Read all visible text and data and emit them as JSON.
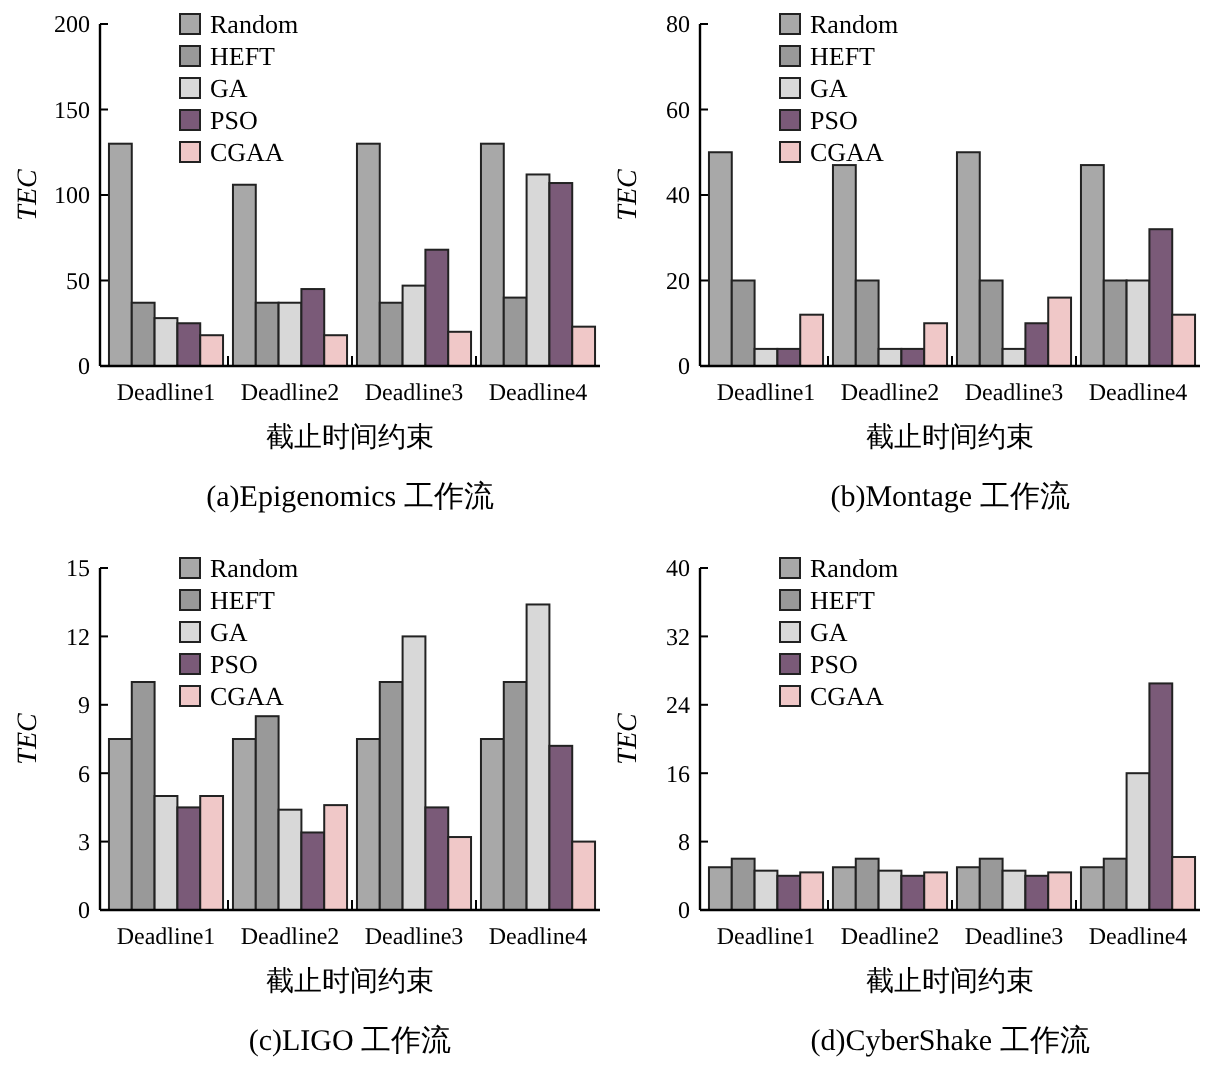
{
  "chart_data": [
    {
      "type": "bar",
      "title": "(a)Epigenomics 工作流",
      "xlabel": "截止时间约束",
      "ylabel": "TEC",
      "categories": [
        "Deadline1",
        "Deadline2",
        "Deadline3",
        "Deadline4"
      ],
      "ylim": [
        0,
        200
      ],
      "yticks": [
        0,
        50,
        100,
        150,
        200
      ],
      "legend": "top left",
      "series": [
        {
          "name": "Random",
          "color": "#a8a8a8",
          "values": [
            130,
            106,
            130,
            130
          ]
        },
        {
          "name": "HEFT",
          "color": "#999999",
          "values": [
            37,
            37,
            37,
            40
          ]
        },
        {
          "name": "GA",
          "color": "#d8d8d8",
          "values": [
            28,
            37,
            47,
            112
          ]
        },
        {
          "name": "PSO",
          "color": "#7a5a78",
          "values": [
            25,
            45,
            68,
            107
          ]
        },
        {
          "name": "CGAA",
          "color": "#f0c8c8",
          "values": [
            18,
            18,
            20,
            23
          ]
        }
      ]
    },
    {
      "type": "bar",
      "title": "(b)Montage 工作流",
      "xlabel": "截止时间约束",
      "ylabel": "TEC",
      "categories": [
        "Deadline1",
        "Deadline2",
        "Deadline3",
        "Deadline4"
      ],
      "ylim": [
        0,
        80
      ],
      "yticks": [
        0,
        20,
        40,
        60,
        80
      ],
      "legend": "top left",
      "series": [
        {
          "name": "Random",
          "color": "#a8a8a8",
          "values": [
            50,
            47,
            50,
            47
          ]
        },
        {
          "name": "HEFT",
          "color": "#999999",
          "values": [
            20,
            20,
            20,
            20
          ]
        },
        {
          "name": "GA",
          "color": "#d8d8d8",
          "values": [
            4,
            4,
            4,
            20
          ]
        },
        {
          "name": "PSO",
          "color": "#7a5a78",
          "values": [
            4,
            4,
            10,
            32
          ]
        },
        {
          "name": "CGAA",
          "color": "#f0c8c8",
          "values": [
            12,
            10,
            16,
            12
          ]
        }
      ]
    },
    {
      "type": "bar",
      "title": "(c)LIGO 工作流",
      "xlabel": "截止时间约束",
      "ylabel": "TEC",
      "categories": [
        "Deadline1",
        "Deadline2",
        "Deadline3",
        "Deadline4"
      ],
      "ylim": [
        0,
        15
      ],
      "yticks": [
        0,
        3,
        6,
        9,
        12,
        15
      ],
      "legend": "top left",
      "series": [
        {
          "name": "Random",
          "color": "#a8a8a8",
          "values": [
            7.5,
            7.5,
            7.5,
            7.5
          ]
        },
        {
          "name": "HEFT",
          "color": "#999999",
          "values": [
            10,
            8.5,
            10,
            10
          ]
        },
        {
          "name": "GA",
          "color": "#d8d8d8",
          "values": [
            5,
            4.4,
            12,
            13.4
          ]
        },
        {
          "name": "PSO",
          "color": "#7a5a78",
          "values": [
            4.5,
            3.4,
            4.5,
            7.2
          ]
        },
        {
          "name": "CGAA",
          "color": "#f0c8c8",
          "values": [
            5,
            4.6,
            3.2,
            3
          ]
        }
      ]
    },
    {
      "type": "bar",
      "title": "(d)CyberShake 工作流",
      "xlabel": "截止时间约束",
      "ylabel": "TEC",
      "categories": [
        "Deadline1",
        "Deadline2",
        "Deadline3",
        "Deadline4"
      ],
      "ylim": [
        0,
        40
      ],
      "yticks": [
        0,
        8,
        16,
        24,
        32,
        40
      ],
      "legend": "top left",
      "series": [
        {
          "name": "Random",
          "color": "#a8a8a8",
          "values": [
            5,
            5,
            5,
            5
          ]
        },
        {
          "name": "HEFT",
          "color": "#999999",
          "values": [
            6,
            6,
            6,
            6
          ]
        },
        {
          "name": "GA",
          "color": "#d8d8d8",
          "values": [
            4.6,
            4.6,
            4.6,
            16
          ]
        },
        {
          "name": "PSO",
          "color": "#7a5a78",
          "values": [
            4,
            4,
            4,
            26.5
          ]
        },
        {
          "name": "CGAA",
          "color": "#f0c8c8",
          "values": [
            4.4,
            4.4,
            4.4,
            6.2
          ]
        }
      ]
    }
  ]
}
